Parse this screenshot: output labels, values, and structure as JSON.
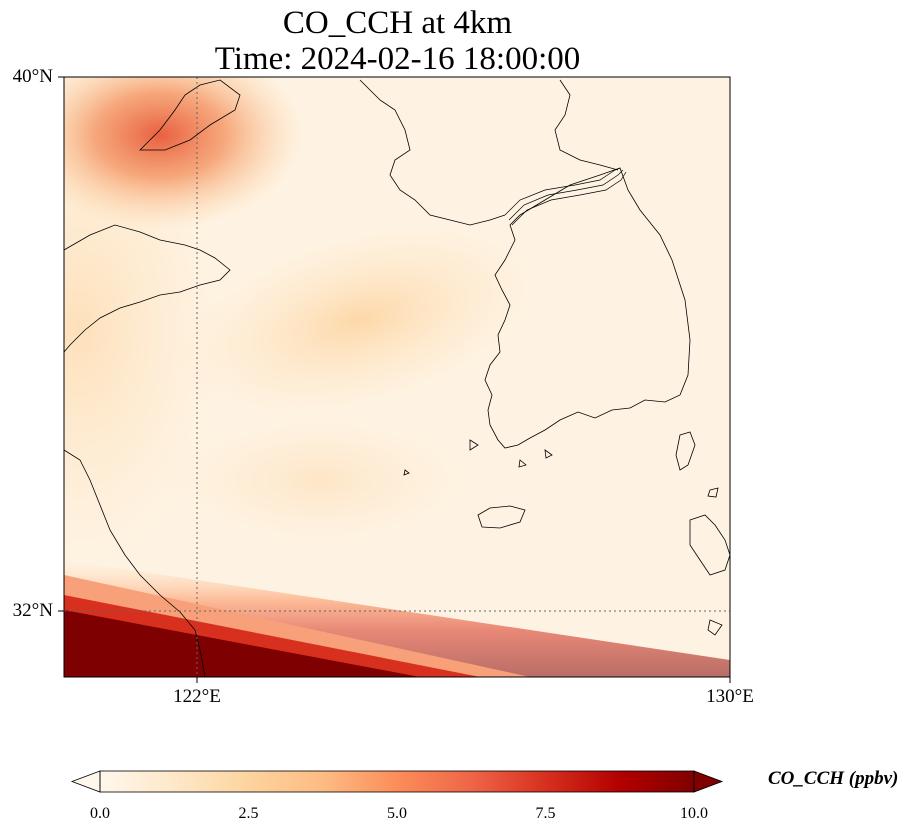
{
  "chart_data": {
    "type": "heatmap",
    "title": "CO_CCH at 4km",
    "subtitle": "Time: 2024-02-16 18:00:00",
    "x_ticks": [
      {
        "value": 122,
        "label": "122°E"
      },
      {
        "value": 130,
        "label": "130°E"
      }
    ],
    "y_ticks": [
      {
        "value": 40,
        "label": "40°N"
      },
      {
        "value": 32,
        "label": "32°N"
      }
    ],
    "xlim": [
      120,
      130
    ],
    "ylim": [
      31,
      40
    ],
    "grid": true,
    "colormap": "OrRd",
    "colorbar": {
      "label": "CO_CCH (ppbv)",
      "range": [
        0.0,
        10.0
      ],
      "extend": "both",
      "ticks": [
        "0.0",
        "2.5",
        "5.0",
        "7.5",
        "10.0"
      ],
      "colors": [
        "#fff7ec",
        "#fee8c8",
        "#fdd49e",
        "#fdbb84",
        "#fc8d59",
        "#ef6548",
        "#d7301f",
        "#b30000",
        "#7f0000"
      ]
    },
    "field_features": [
      {
        "region": "northwest corner near 121°E 39.5°N",
        "value_ppbv": 5.5
      },
      {
        "region": "central Yellow Sea near 124°E 36.5°N",
        "value_ppbv": 2.0
      },
      {
        "region": "southern boundary band south of 32°N",
        "value_ppbv": 10.0
      },
      {
        "region": "background (Korea, Yellow Sea)",
        "value_ppbv": 0.5
      }
    ]
  }
}
